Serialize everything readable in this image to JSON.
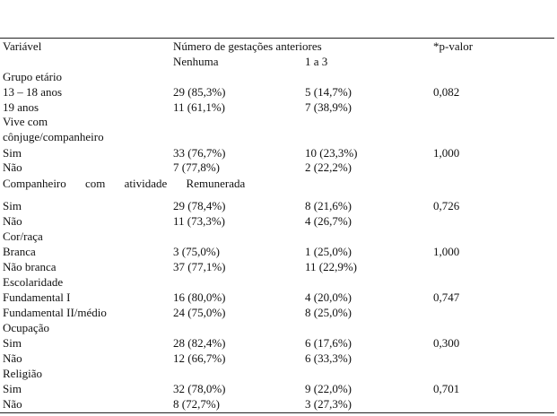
{
  "table": {
    "header": [
      "Variável",
      "Número de gestações anteriores",
      "*p-valor"
    ],
    "subheader": [
      "Nenhuma",
      "1 a 3"
    ],
    "rows": [
      [
        "Grupo etário"
      ],
      [
        "13 – 18 anos",
        "29 (85,3%)",
        "5 (14,7%)",
        "0,082"
      ],
      [
        "19 anos",
        "11 (61,1%)",
        "7 (38,9%)"
      ],
      [
        "Vive com"
      ],
      [
        "cônjuge/companheiro"
      ],
      [
        "Sim",
        "33 (76,7%)",
        "10 (23,3%)",
        "1,000"
      ],
      [
        "Não",
        "7 (77,8%)",
        "2 (22,2%)"
      ],
      [
        "Companheiro com atividade Remunerada"
      ],
      [
        "Sim",
        "29 (78,4%)",
        "8 (21,6%)",
        "0,726"
      ],
      [
        "Não",
        "11 (73,3%)",
        "4 (26,7%)"
      ],
      [
        "Cor/raça"
      ],
      [
        "Branca",
        "3 (75,0%)",
        "1 (25,0%)",
        "1,000"
      ],
      [
        "Não branca",
        "37 (77,1%)",
        "11 (22,9%)"
      ],
      [
        "Escolaridade"
      ],
      [
        "Fundamental I",
        "16 (80,0%)",
        "4 (20,0%)",
        "0,747"
      ],
      [
        "Fundamental II/médio",
        "24 (75,0%)",
        "8 (25,0%)"
      ],
      [
        "Ocupação"
      ],
      [
        "Sim",
        "28 (82,4%)",
        "6 (17,6%)",
        "0,300"
      ],
      [
        "Não",
        "12 (66,7%)",
        "6 (33,3%)"
      ],
      [
        "Religião"
      ],
      [
        "Sim",
        "32 (78,0%)",
        "9 (22,0%)",
        "0,701"
      ],
      [
        "Não",
        "8 (72,7%)",
        "3 (27,3%)"
      ]
    ]
  }
}
